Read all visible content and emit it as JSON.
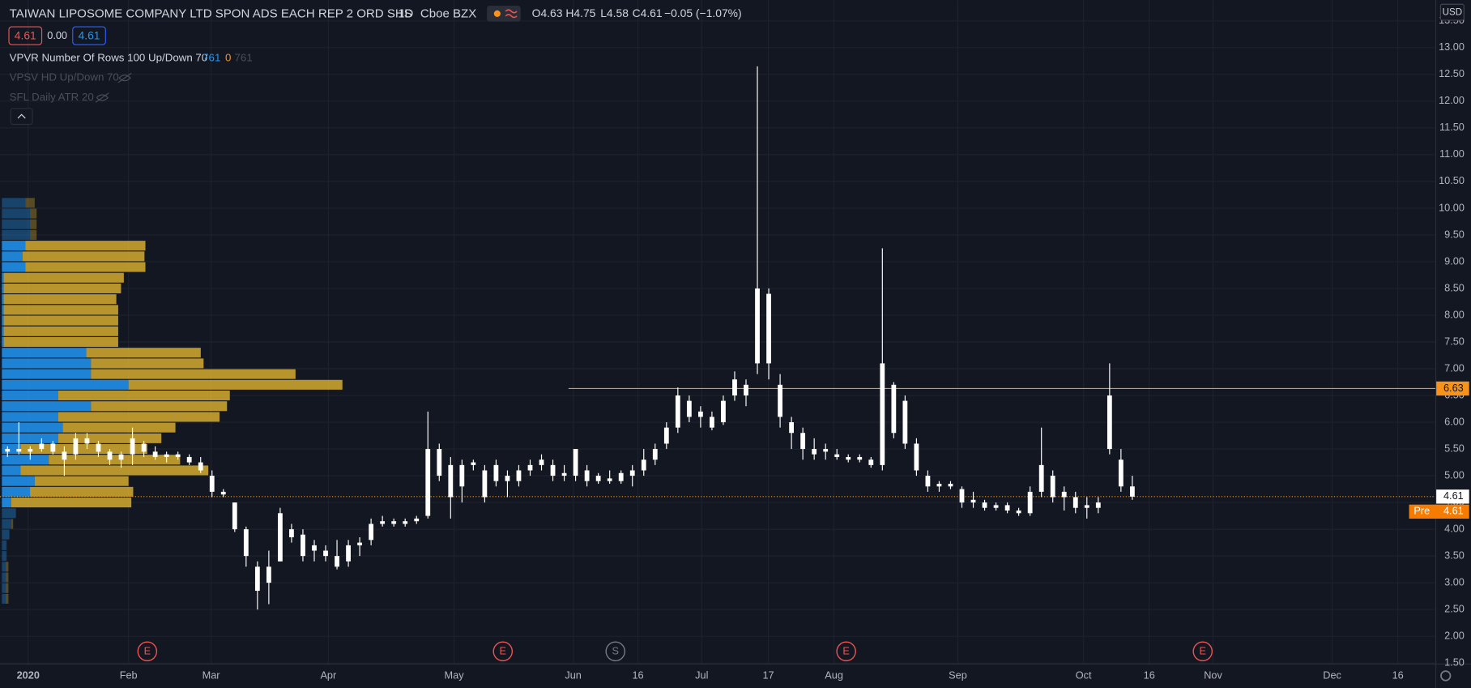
{
  "header": {
    "symbol": "TAIWAN LIPOSOME COMPANY LTD SPON ADS EACH REP 2 ORD SHS",
    "interval": "1D",
    "exchange": "Cboe BZX",
    "open": "O4.63",
    "high": "H4.75",
    "low": "L4.58",
    "close": "C4.61",
    "change": "−0.05 (−1.07%)",
    "badges": [
      "4.61",
      "0.00",
      "4.61"
    ],
    "indicators": [
      {
        "name": "VPVR Number Of Rows 100 Up/Down 70",
        "values": [
          "761",
          "0",
          "761"
        ]
      },
      {
        "name": "VPSV HD Up/Down 70",
        "values": []
      },
      {
        "name": "SFL Daily ATR 20",
        "values": []
      }
    ]
  },
  "chart_data": {
    "type": "candlestick",
    "currency": "USD",
    "open": [
      5.45,
      5.5,
      5.45,
      5.5,
      5.6,
      5.45,
      5.4,
      5.7,
      5.6,
      5.45,
      5.3,
      5.4,
      5.6,
      5.45,
      5.35,
      5.4,
      5.35,
      5.25,
      5.0,
      4.7,
      4.5,
      4.0,
      3.3,
      3.0,
      3.4,
      4.0,
      3.9,
      3.6,
      3.6,
      3.5,
      3.4,
      3.7,
      3.8,
      4.1,
      4.15,
      4.1,
      4.15,
      4.25,
      5.5,
      5.2,
      4.8,
      5.2,
      5.1,
      4.9,
      5.0,
      4.9,
      5.1,
      5.2,
      5.2,
      5.0,
      5.0,
      5.1,
      4.9,
      4.95,
      4.9,
      5.0,
      5.1,
      5.3,
      5.6,
      5.9,
      6.4,
      6.1,
      6.1,
      6.0,
      6.5,
      6.7,
      7.1,
      8.4,
      6.7,
      6.0,
      5.8,
      5.5,
      5.5,
      5.4,
      5.35,
      5.3,
      5.3,
      5.2,
      6.7,
      6.4,
      5.6,
      5.0,
      4.8,
      4.85,
      4.75,
      4.5,
      4.5,
      4.4,
      4.45,
      4.35,
      4.3,
      4.7,
      5.0,
      4.6,
      4.6,
      4.4,
      4.4,
      5.5,
      5.3,
      4.8
    ],
    "high": [
      5.55,
      6.0,
      5.55,
      5.7,
      5.65,
      5.55,
      5.8,
      5.8,
      5.65,
      5.5,
      5.45,
      5.9,
      5.65,
      5.55,
      5.45,
      5.45,
      5.4,
      5.35,
      5.1,
      4.75,
      4.5,
      4.05,
      3.4,
      3.6,
      4.4,
      4.1,
      4.0,
      3.8,
      3.7,
      3.8,
      3.8,
      3.85,
      4.2,
      4.25,
      4.2,
      4.2,
      4.25,
      6.2,
      5.6,
      5.35,
      5.3,
      5.3,
      5.2,
      5.3,
      5.1,
      5.2,
      5.3,
      5.4,
      5.3,
      5.2,
      5.5,
      5.2,
      5.05,
      5.1,
      5.1,
      5.2,
      5.5,
      5.6,
      6.0,
      6.65,
      6.5,
      6.3,
      6.2,
      6.5,
      6.95,
      6.8,
      12.65,
      8.5,
      6.9,
      6.1,
      5.9,
      5.7,
      5.6,
      5.5,
      5.4,
      5.4,
      5.35,
      9.25,
      6.75,
      6.5,
      5.7,
      5.1,
      4.9,
      4.9,
      4.8,
      4.7,
      4.55,
      4.5,
      4.5,
      4.4,
      4.8,
      5.9,
      5.1,
      4.8,
      4.7,
      4.6,
      4.6,
      7.1,
      5.5,
      5.0
    ],
    "low": [
      5.35,
      5.4,
      5.3,
      5.45,
      5.4,
      5.0,
      5.3,
      5.5,
      5.35,
      5.2,
      5.15,
      5.2,
      5.35,
      5.3,
      5.25,
      5.3,
      5.2,
      5.05,
      4.6,
      4.6,
      3.95,
      3.3,
      2.5,
      2.6,
      3.4,
      3.75,
      3.4,
      3.4,
      3.4,
      3.25,
      3.3,
      3.5,
      3.7,
      4.05,
      4.05,
      4.05,
      4.1,
      4.2,
      4.9,
      4.2,
      4.5,
      5.1,
      4.5,
      4.8,
      4.6,
      4.8,
      5.0,
      5.1,
      4.9,
      4.9,
      4.9,
      4.8,
      4.85,
      4.85,
      4.85,
      4.8,
      5.0,
      5.2,
      5.5,
      5.8,
      6.0,
      5.9,
      5.85,
      5.95,
      6.4,
      6.3,
      6.9,
      6.8,
      5.9,
      5.5,
      5.3,
      5.3,
      5.3,
      5.3,
      5.25,
      5.25,
      5.15,
      5.1,
      5.7,
      5.5,
      5.0,
      4.7,
      4.7,
      4.75,
      4.4,
      4.4,
      4.35,
      4.35,
      4.3,
      4.25,
      4.25,
      4.6,
      4.5,
      4.35,
      4.3,
      4.2,
      4.3,
      5.4,
      4.7,
      4.55
    ],
    "close": [
      5.5,
      5.45,
      5.5,
      5.6,
      5.45,
      5.3,
      5.7,
      5.6,
      5.45,
      5.3,
      5.4,
      5.7,
      5.45,
      5.35,
      5.4,
      5.35,
      5.25,
      5.1,
      4.7,
      4.65,
      4.0,
      3.5,
      2.85,
      3.3,
      4.3,
      3.85,
      3.5,
      3.7,
      3.5,
      3.3,
      3.7,
      3.75,
      4.1,
      4.15,
      4.1,
      4.15,
      4.2,
      5.5,
      5.0,
      4.6,
      5.2,
      5.25,
      4.6,
      5.2,
      4.9,
      5.1,
      5.2,
      5.3,
      5.0,
      5.05,
      5.5,
      4.9,
      5.0,
      4.9,
      5.05,
      5.1,
      5.3,
      5.5,
      5.9,
      6.5,
      6.1,
      6.2,
      5.9,
      6.4,
      6.8,
      6.5,
      8.5,
      7.1,
      6.1,
      5.8,
      5.5,
      5.4,
      5.45,
      5.35,
      5.3,
      5.35,
      5.2,
      7.1,
      5.8,
      5.6,
      5.1,
      4.8,
      4.85,
      4.8,
      4.5,
      4.55,
      4.4,
      4.45,
      4.35,
      4.3,
      4.7,
      5.2,
      4.6,
      4.7,
      4.4,
      4.45,
      4.5,
      6.5,
      4.8,
      4.61
    ],
    "ylim": [
      1.49,
      13.89
    ],
    "yticks": [
      {
        "value": 1.5,
        "label": "1.50"
      },
      {
        "value": 2,
        "label": "2.00"
      },
      {
        "value": 2.5,
        "label": "2.50"
      },
      {
        "value": 3,
        "label": "3.00"
      },
      {
        "value": 3.5,
        "label": "3.50"
      },
      {
        "value": 4,
        "label": "4.00"
      },
      {
        "value": 4.5,
        "label": "4.50"
      },
      {
        "value": 5,
        "label": "5.00"
      },
      {
        "value": 5.5,
        "label": "5.50"
      },
      {
        "value": 6,
        "label": "6.00"
      },
      {
        "value": 6.5,
        "label": "6.50"
      },
      {
        "value": 7,
        "label": "7.00"
      },
      {
        "value": 7.5,
        "label": "7.50"
      },
      {
        "value": 8,
        "label": "8.00"
      },
      {
        "value": 8.5,
        "label": "8.50"
      },
      {
        "value": 9,
        "label": "9.00"
      },
      {
        "value": 9.5,
        "label": "9.50"
      },
      {
        "value": 10,
        "label": "10.00"
      },
      {
        "value": 10.5,
        "label": "10.50"
      },
      {
        "value": 11,
        "label": "11.00"
      },
      {
        "value": 11.5,
        "label": "11.50"
      },
      {
        "value": 12,
        "label": "12.00"
      },
      {
        "value": 12.5,
        "label": "12.50"
      },
      {
        "value": 13,
        "label": "13.00"
      },
      {
        "value": 13.5,
        "label": "13.50"
      }
    ],
    "xlabels": [
      "2020",
      "Feb",
      "Mar",
      "Apr",
      "May",
      "Jun",
      "16",
      "Jul",
      "17",
      "Aug",
      "Sep",
      "Oct",
      "16",
      "Nov",
      "Dec",
      "16"
    ],
    "grid": true,
    "candle_color": "#ffffff",
    "lines": [
      {
        "value": 6.63,
        "color": "#f7931a",
        "style": "solid"
      },
      {
        "value": 4.61,
        "color": "#f7931a",
        "style": "dotted"
      }
    ],
    "pre_label": "Pre",
    "pre_value": 4.61,
    "events": [
      "E",
      "E",
      "S",
      "E",
      "E"
    ],
    "volume_profile": {
      "prices": [
        10.1,
        9.9,
        9.7,
        9.5,
        9.3,
        9.1,
        8.9,
        8.7,
        8.5,
        8.3,
        8.1,
        7.9,
        7.7,
        7.5,
        7.3,
        7.1,
        6.9,
        6.7,
        6.5,
        6.3,
        6.1,
        5.9,
        5.7,
        5.5,
        5.3,
        5.1,
        4.9,
        4.7,
        4.5,
        4.3,
        4.1,
        3.9,
        3.7,
        3.5,
        3.3,
        3.1,
        2.9,
        2.7
      ],
      "up": [
        25,
        30,
        30,
        30,
        25,
        22,
        25,
        2,
        2,
        2,
        2,
        2,
        2,
        2,
        90,
        95,
        95,
        135,
        60,
        95,
        60,
        65,
        60,
        20,
        50,
        20,
        35,
        30,
        10,
        15,
        10,
        8,
        5,
        5,
        4,
        4,
        4,
        4
      ],
      "down": [
        10,
        7,
        7,
        7,
        128,
        130,
        128,
        128,
        125,
        120,
        122,
        122,
        122,
        122,
        122,
        120,
        218,
        228,
        183,
        145,
        172,
        120,
        110,
        135,
        140,
        200,
        100,
        110,
        128,
        0,
        2,
        0,
        0,
        0,
        3,
        3,
        3,
        3
      ],
      "in_value_area": [
        false,
        false,
        false,
        false,
        true,
        true,
        true,
        true,
        true,
        true,
        true,
        true,
        true,
        true,
        true,
        true,
        true,
        true,
        true,
        true,
        true,
        true,
        true,
        true,
        true,
        true,
        true,
        true,
        true,
        false,
        false,
        false,
        false,
        false,
        false,
        false,
        false,
        false
      ]
    }
  }
}
